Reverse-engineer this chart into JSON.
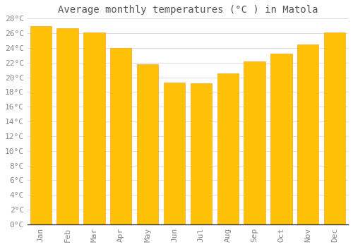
{
  "title": "Average monthly temperatures (°C ) in Matola",
  "months": [
    "Jan",
    "Feb",
    "Mar",
    "Apr",
    "May",
    "Jun",
    "Jul",
    "Aug",
    "Sep",
    "Oct",
    "Nov",
    "Dec"
  ],
  "values": [
    27.0,
    26.7,
    26.1,
    24.0,
    21.8,
    19.3,
    19.2,
    20.5,
    22.2,
    23.2,
    24.5,
    26.1
  ],
  "bar_color": "#FFC107",
  "bar_edge_color": "#F5A623",
  "background_color": "#FFFFFF",
  "grid_color": "#DDDDDD",
  "text_color": "#888888",
  "title_color": "#555555",
  "ylim": [
    0,
    28
  ],
  "ytick_step": 2,
  "title_fontsize": 10,
  "tick_fontsize": 8,
  "font_family": "monospace"
}
